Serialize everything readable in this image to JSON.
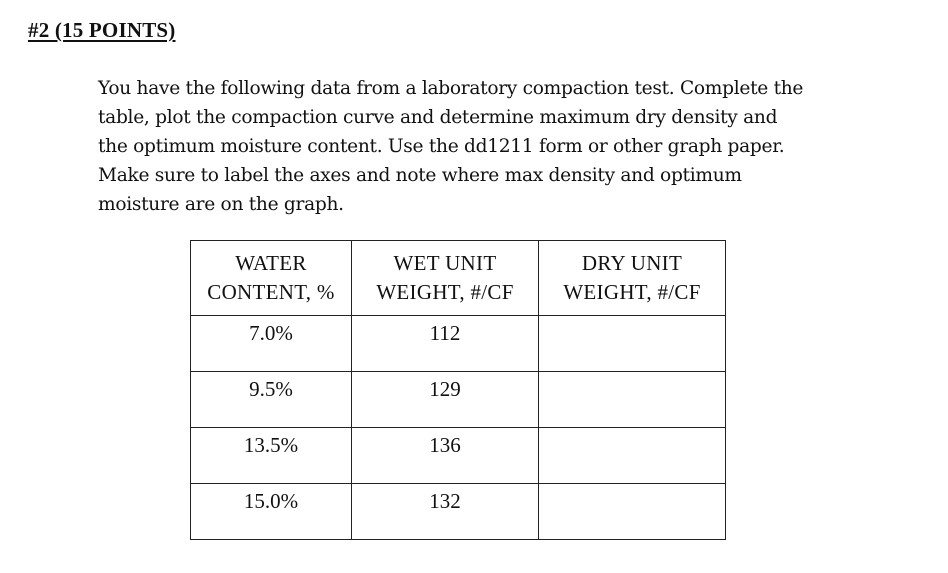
{
  "heading": "#2 (15 POINTS)",
  "instructions": [
    "You have the following data from a laboratory compaction test.  Complete the",
    "table, plot the compaction curve and determine maximum dry density and",
    "the optimum moisture content. Use the dd1211 form or other graph paper.",
    "Make sure to label the axes and note where max density and optimum",
    "moisture are on the graph."
  ],
  "table": {
    "headers": [
      [
        "WATER",
        "CONTENT, %"
      ],
      [
        "WET UNIT",
        "WEIGHT, #/CF"
      ],
      [
        "DRY UNIT",
        "WEIGHT, #/CF"
      ]
    ],
    "rows": [
      {
        "water_content": "7.0%",
        "wet_unit_weight": "112",
        "dry_unit_weight": ""
      },
      {
        "water_content": "9.5%",
        "wet_unit_weight": "129",
        "dry_unit_weight": ""
      },
      {
        "water_content": "13.5%",
        "wet_unit_weight": "136",
        "dry_unit_weight": ""
      },
      {
        "water_content": "15.0%",
        "wet_unit_weight": "132",
        "dry_unit_weight": ""
      }
    ]
  }
}
